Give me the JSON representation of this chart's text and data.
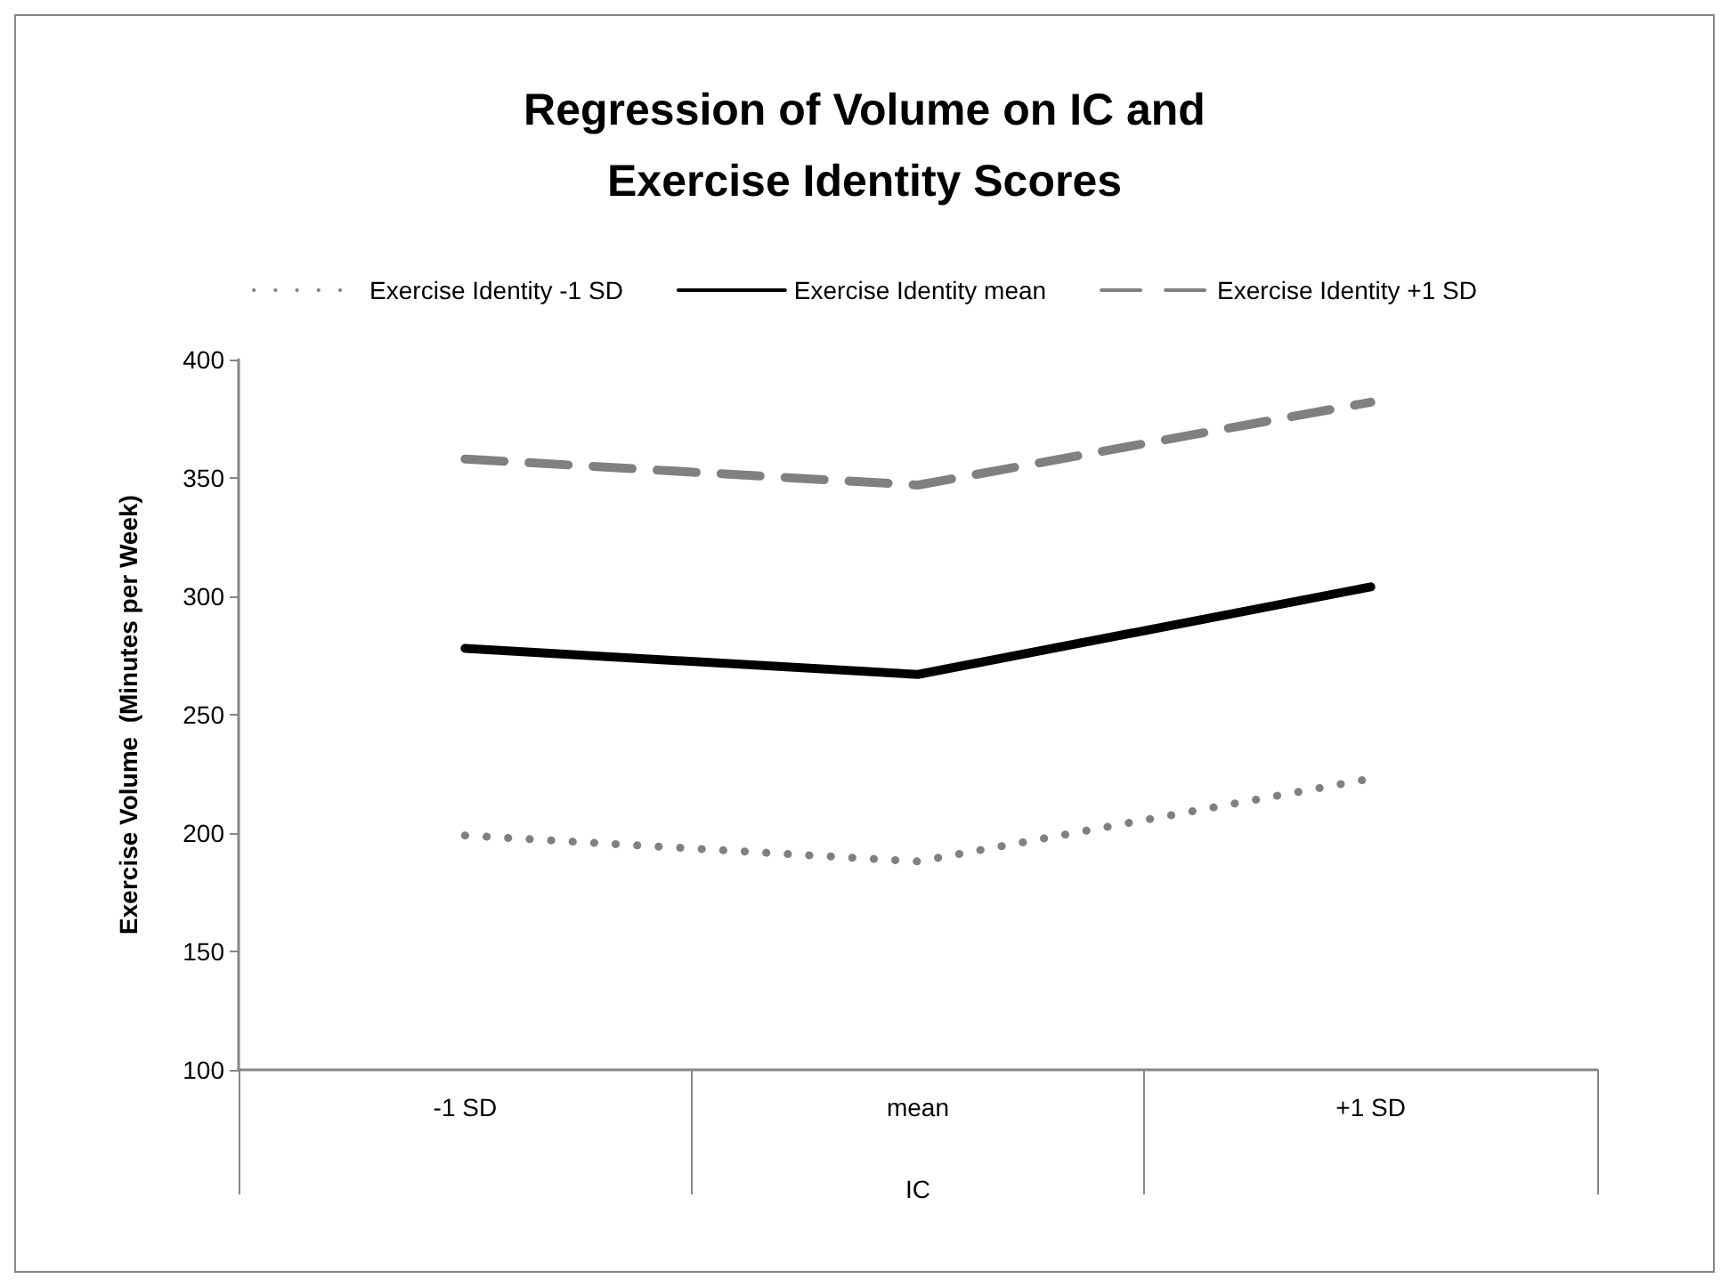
{
  "chart_data": {
    "type": "line",
    "title": "Regression of Volume on IC and\nExercise Identity Scores",
    "xlabel": "IC",
    "ylabel": "Exercise Volume  (Minutes per Week)",
    "categories": [
      "-1 SD",
      "mean",
      "+1 SD"
    ],
    "series": [
      {
        "name": "Exercise Identity -1 SD",
        "color": "#808080",
        "line_style": "dotted",
        "values": [
          199,
          188,
          223
        ]
      },
      {
        "name": "Exercise Identity mean",
        "color": "#000000",
        "line_style": "solid",
        "values": [
          278,
          267,
          304
        ]
      },
      {
        "name": "Exercise Identity +1 SD",
        "color": "#808080",
        "line_style": "dashed",
        "values": [
          358,
          347,
          382
        ]
      }
    ],
    "ylim": [
      100,
      400
    ],
    "yticks": [
      100,
      150,
      200,
      250,
      300,
      350,
      400
    ],
    "grid": false,
    "legend": "top",
    "marker": "none"
  }
}
